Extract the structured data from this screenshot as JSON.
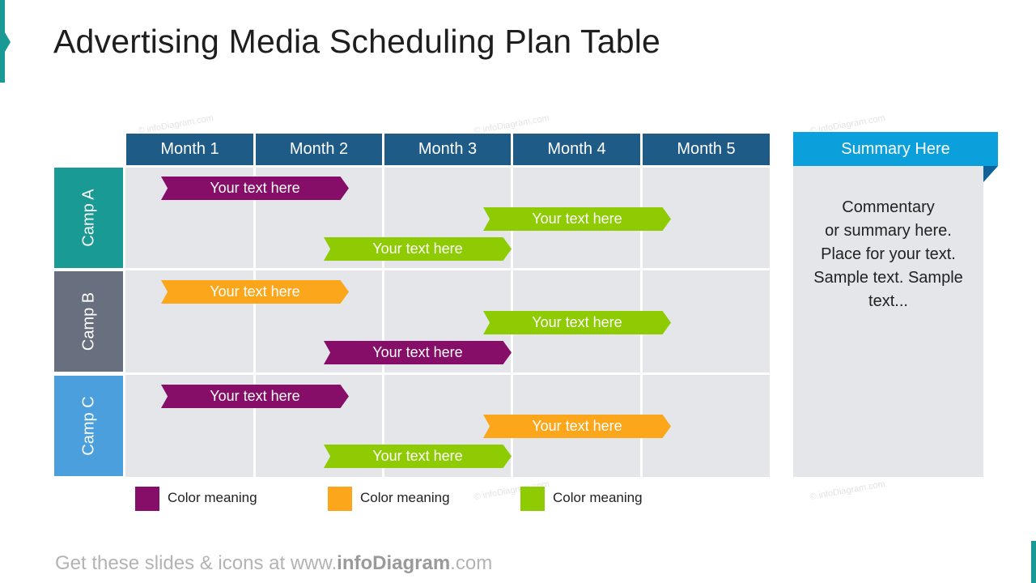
{
  "title": "Advertising Media Scheduling Plan Table",
  "months": [
    "Month 1",
    "Month 2",
    "Month 3",
    "Month 4",
    "Month 5"
  ],
  "camps": [
    "Camp A",
    "Camp B",
    "Camp C"
  ],
  "bar_label": "Your text here",
  "colors": {
    "purple": "#860e69",
    "orange": "#fba61b",
    "green": "#8fcb03",
    "camp_a": "#1a9a94",
    "camp_b": "#68707f",
    "camp_c": "#4a9fdc",
    "header": "#1f5b87",
    "summary_head": "#0ba0dc"
  },
  "summary": {
    "title": "Summary Here",
    "lines": [
      "Commentary",
      "or summary here.",
      "Place for your text.",
      "Sample text. Sample",
      "text..."
    ]
  },
  "legend": [
    {
      "label": "Color meaning",
      "color": "purple"
    },
    {
      "label": "Color meaning",
      "color": "orange"
    },
    {
      "label": "Color meaning",
      "color": "green"
    }
  ],
  "footer": {
    "prefix": "Get these slides & icons at www.",
    "brand": "infoDiagram",
    "suffix": ".com"
  },
  "watermark": "© infoDiagram.com"
}
